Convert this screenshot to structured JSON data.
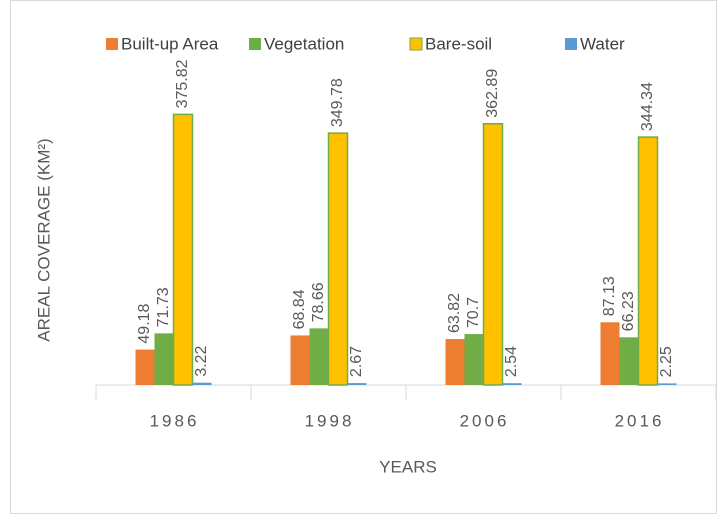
{
  "chart_data": {
    "type": "bar",
    "y_label": "AREAL COVERAGE (KM²)",
    "x_label": "YEARS",
    "categories": [
      "1986",
      "1998",
      "2006",
      "2016"
    ],
    "series": [
      {
        "name": "Built-up Area",
        "color": "#ED7D31",
        "values": [
          49.18,
          68.84,
          63.82,
          87.13
        ]
      },
      {
        "name": "Vegetation",
        "color": "#70AD47",
        "values": [
          71.73,
          78.66,
          70.7,
          66.23
        ]
      },
      {
        "name": "Bare-soil",
        "color": "#FFC000",
        "edge": "#70AD47",
        "values": [
          375.82,
          349.78,
          362.89,
          344.34
        ]
      },
      {
        "name": "Water",
        "color": "#5B9BD5",
        "values": [
          3.22,
          2.67,
          2.54,
          2.25
        ]
      }
    ],
    "ylim": [
      0,
      400
    ],
    "legend": "top"
  }
}
